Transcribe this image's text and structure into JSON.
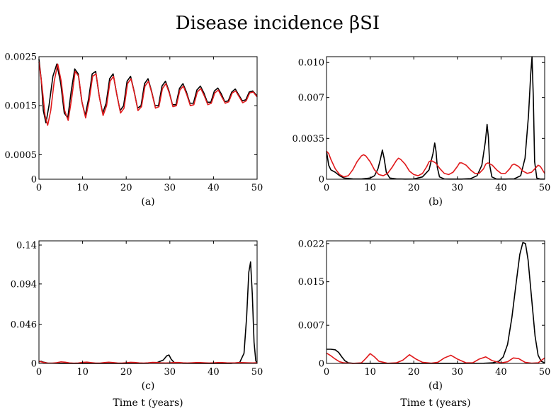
{
  "figure": {
    "title": "Disease incidence βSI",
    "x_label": "Time t (years)"
  },
  "colors": {
    "series_a": "#000000",
    "series_b": "#e0191b"
  },
  "chart_data": [
    {
      "type": "line",
      "caption": "(a)",
      "xlim": [
        0,
        50
      ],
      "ylim": [
        0,
        0.0025
      ],
      "xticks": [
        0,
        10,
        20,
        30,
        40,
        50
      ],
      "xtick_labels": [
        "0",
        "10",
        "20",
        "30",
        "40",
        "50"
      ],
      "yticks": [
        0,
        0.0005,
        0.0015,
        0.0025
      ],
      "ytick_labels": [
        "0",
        "0.0005",
        "0.0015",
        "0.0025"
      ],
      "series": [
        {
          "name": "black",
          "x": [
            0,
            0.5,
            1,
            1.6,
            2.3,
            3.2,
            4.1,
            5.0,
            5.8,
            6.6,
            7.4,
            8.2,
            9.0,
            9.8,
            10.6,
            11.4,
            12.2,
            13.0,
            13.8,
            14.6,
            15.4,
            16.2,
            17.0,
            17.8,
            18.6,
            19.4,
            20.2,
            21.0,
            21.8,
            22.6,
            23.4,
            24.2,
            25.0,
            25.8,
            26.6,
            27.4,
            28.2,
            29.0,
            29.8,
            30.6,
            31.4,
            32.2,
            33.0,
            33.8,
            34.6,
            35.4,
            36.2,
            37.0,
            37.8,
            38.6,
            39.4,
            40.2,
            41.0,
            41.8,
            42.6,
            43.4,
            44.2,
            45.0,
            45.8,
            46.6,
            47.4,
            48.2,
            49.0,
            49.8,
            50
          ],
          "values": [
            0.00245,
            0.00205,
            0.0014,
            0.00115,
            0.0015,
            0.0021,
            0.00235,
            0.00195,
            0.00135,
            0.00125,
            0.0018,
            0.00225,
            0.00215,
            0.0016,
            0.0013,
            0.00165,
            0.00215,
            0.0022,
            0.0017,
            0.00135,
            0.00155,
            0.00205,
            0.00215,
            0.00175,
            0.0014,
            0.0015,
            0.002,
            0.0021,
            0.0018,
            0.00145,
            0.0015,
            0.00195,
            0.00205,
            0.0018,
            0.0015,
            0.0015,
            0.0019,
            0.002,
            0.0018,
            0.00152,
            0.00152,
            0.00185,
            0.00195,
            0.00178,
            0.00155,
            0.00155,
            0.00182,
            0.0019,
            0.00176,
            0.00157,
            0.00157,
            0.0018,
            0.00186,
            0.00174,
            0.00158,
            0.0016,
            0.00178,
            0.00184,
            0.00172,
            0.0016,
            0.00162,
            0.00178,
            0.0018,
            0.00172,
            0.00168
          ]
        },
        {
          "name": "red",
          "x": [
            0,
            0.7,
            1.4,
            2.0,
            2.7,
            3.5,
            4.3,
            5.1,
            5.9,
            6.7,
            7.5,
            8.3,
            9.1,
            9.9,
            10.7,
            11.5,
            12.3,
            13.1,
            13.9,
            14.7,
            15.5,
            16.3,
            17.1,
            17.9,
            18.7,
            19.5,
            20.3,
            21.1,
            21.9,
            22.7,
            23.5,
            24.3,
            25.1,
            25.9,
            26.7,
            27.5,
            28.3,
            29.1,
            29.9,
            30.7,
            31.5,
            32.3,
            33.1,
            33.9,
            34.7,
            35.5,
            36.3,
            37.1,
            37.9,
            38.7,
            39.5,
            40.3,
            41.1,
            41.9,
            42.7,
            43.5,
            44.3,
            45.1,
            45.9,
            46.7,
            47.5,
            48.3,
            49.1,
            50
          ],
          "values": [
            0.0024,
            0.0019,
            0.0013,
            0.0011,
            0.0014,
            0.002,
            0.00235,
            0.002,
            0.0014,
            0.0012,
            0.00165,
            0.0022,
            0.0021,
            0.00155,
            0.00125,
            0.0016,
            0.0021,
            0.00215,
            0.00165,
            0.0013,
            0.0015,
            0.002,
            0.0021,
            0.0017,
            0.00135,
            0.00145,
            0.00195,
            0.00205,
            0.00175,
            0.0014,
            0.00148,
            0.0019,
            0.002,
            0.00175,
            0.00145,
            0.00148,
            0.00185,
            0.00195,
            0.00175,
            0.00148,
            0.0015,
            0.00182,
            0.0019,
            0.00172,
            0.0015,
            0.00152,
            0.00178,
            0.00185,
            0.0017,
            0.00152,
            0.00155,
            0.00176,
            0.00182,
            0.00168,
            0.00155,
            0.00158,
            0.00176,
            0.0018,
            0.00168,
            0.00156,
            0.0016,
            0.00176,
            0.00178,
            0.00168
          ]
        }
      ]
    },
    {
      "type": "line",
      "caption": "(b)",
      "xlim": [
        0,
        50
      ],
      "ylim": [
        0,
        0.0105
      ],
      "xticks": [
        0,
        10,
        20,
        30,
        40,
        50
      ],
      "xtick_labels": [
        "0",
        "10",
        "20",
        "30",
        "40",
        "50"
      ],
      "yticks": [
        0,
        0.0035,
        0.007,
        0.01
      ],
      "ytick_labels": [
        "0",
        "0.0035",
        "0.007",
        "0.010"
      ],
      "series": [
        {
          "name": "black",
          "x": [
            0,
            0.5,
            1,
            2,
            3,
            4,
            6,
            8,
            10,
            11,
            11.8,
            12.4,
            12.8,
            13.2,
            13.7,
            14.5,
            16,
            18,
            20,
            22,
            23.5,
            24.4,
            24.8,
            25.1,
            25.4,
            25.9,
            27,
            29,
            31,
            33,
            34.5,
            35.6,
            36.4,
            36.8,
            37.1,
            37.4,
            37.9,
            39,
            41,
            43,
            44.5,
            45.5,
            46.3,
            46.8,
            47.1,
            47.4,
            47.7,
            48.2,
            49,
            50
          ],
          "values": [
            0.0024,
            0.0012,
            0.0008,
            0.0006,
            0.0003,
            0.0001,
            3e-05,
            2e-05,
            0.0001,
            0.0003,
            0.0009,
            0.0018,
            0.0025,
            0.0018,
            0.0006,
            0.0001,
            3e-05,
            1e-05,
            2e-05,
            0.0002,
            0.0008,
            0.0022,
            0.0031,
            0.0024,
            0.001,
            0.0002,
            2e-05,
            1e-05,
            1e-05,
            5e-05,
            0.0003,
            0.0012,
            0.0032,
            0.0047,
            0.0036,
            0.0012,
            0.0002,
            1e-05,
            1e-05,
            3e-05,
            0.0003,
            0.0018,
            0.0055,
            0.009,
            0.0105,
            0.007,
            0.0015,
            0.0001,
            1e-05,
            1e-05
          ]
        },
        {
          "name": "red",
          "x": [
            0,
            0.5,
            1,
            2,
            3,
            4,
            5,
            6,
            7,
            8,
            8.5,
            9,
            10,
            11,
            12,
            13,
            14,
            15,
            16,
            16.5,
            17,
            18,
            19,
            20,
            21,
            22,
            23,
            23.5,
            24,
            25,
            26,
            27,
            28,
            29,
            30,
            30.5,
            31,
            32,
            33,
            34,
            35,
            36,
            36.5,
            37,
            38,
            39,
            40,
            41,
            42,
            42.5,
            43,
            44,
            45,
            46,
            47,
            48,
            48.5,
            49,
            50
          ],
          "values": [
            0.0024,
            0.0022,
            0.0017,
            0.0009,
            0.0004,
            0.0002,
            0.0003,
            0.0008,
            0.0015,
            0.002,
            0.0021,
            0.002,
            0.0015,
            0.0008,
            0.0004,
            0.0003,
            0.0005,
            0.001,
            0.0016,
            0.0018,
            0.0017,
            0.0013,
            0.0007,
            0.0004,
            0.0003,
            0.0005,
            0.0011,
            0.0015,
            0.0016,
            0.0014,
            0.0009,
            0.0005,
            0.0004,
            0.0006,
            0.0011,
            0.0014,
            0.0014,
            0.0012,
            0.0008,
            0.0005,
            0.0005,
            0.0009,
            0.0013,
            0.0014,
            0.0012,
            0.0008,
            0.0005,
            0.0005,
            0.0009,
            0.0012,
            0.0013,
            0.0011,
            0.0007,
            0.0005,
            0.0006,
            0.001,
            0.0012,
            0.0011,
            0.0005
          ]
        }
      ]
    },
    {
      "type": "line",
      "caption": "(c)",
      "xlim": [
        0,
        50
      ],
      "ylim": [
        0,
        0.145
      ],
      "xticks": [
        0,
        10,
        20,
        30,
        40,
        50
      ],
      "xtick_labels": [
        "0",
        "10",
        "20",
        "30",
        "40",
        "50"
      ],
      "yticks": [
        0,
        0.046,
        0.094,
        0.14
      ],
      "ytick_labels": [
        "0",
        "0.046",
        "0.094",
        "0.14"
      ],
      "series": [
        {
          "name": "black",
          "x": [
            0,
            0.5,
            1,
            2,
            5,
            10,
            15,
            20,
            25,
            27,
            28.5,
            29.3,
            29.8,
            30.3,
            31,
            33,
            38,
            44,
            46,
            47,
            47.6,
            48.1,
            48.5,
            48.9,
            49.3,
            49.7,
            50
          ],
          "values": [
            0.002,
            0.0025,
            0.0015,
            0.0004,
            5e-05,
            2e-05,
            1e-05,
            1e-05,
            0.0001,
            0.0008,
            0.004,
            0.009,
            0.01,
            0.005,
            0.001,
            0.0001,
            1e-05,
            5e-05,
            0.001,
            0.012,
            0.055,
            0.108,
            0.12,
            0.082,
            0.025,
            0.003,
            0.0002
          ]
        },
        {
          "name": "red",
          "x": [
            0,
            1,
            2,
            3,
            4,
            5,
            6,
            7,
            8,
            9,
            10,
            11,
            12,
            13,
            14,
            15,
            16,
            17,
            18,
            19,
            20,
            21,
            22,
            23,
            24,
            25,
            26,
            27,
            28,
            29,
            30,
            31,
            32,
            33,
            34,
            35,
            36,
            37,
            38,
            39,
            40,
            41,
            42,
            43,
            44,
            45,
            46,
            47,
            48,
            49,
            50
          ],
          "values": [
            0.0025,
            0.0012,
            0.0004,
            0.0003,
            0.0008,
            0.0018,
            0.0014,
            0.0006,
            0.0003,
            0.0005,
            0.0012,
            0.0015,
            0.0009,
            0.0004,
            0.0004,
            0.001,
            0.0014,
            0.001,
            0.0005,
            0.0004,
            0.0008,
            0.0013,
            0.0011,
            0.0006,
            0.0004,
            0.0007,
            0.0012,
            0.0011,
            0.0007,
            0.0005,
            0.0007,
            0.0011,
            0.0011,
            0.0007,
            0.0005,
            0.0007,
            0.001,
            0.001,
            0.0007,
            0.0005,
            0.0007,
            0.001,
            0.001,
            0.0007,
            0.0006,
            0.0007,
            0.001,
            0.0009,
            0.0007,
            0.0006,
            0.0008
          ]
        }
      ]
    },
    {
      "type": "line",
      "caption": "(d)",
      "xlim": [
        0,
        50
      ],
      "ylim": [
        0,
        0.0225
      ],
      "xticks": [
        0,
        10,
        20,
        30,
        40,
        50
      ],
      "xtick_labels": [
        "0",
        "10",
        "20",
        "30",
        "40",
        "50"
      ],
      "yticks": [
        0,
        0.007,
        0.015,
        0.022
      ],
      "ytick_labels": [
        "0",
        "0.007",
        "0.015",
        "0.022"
      ],
      "series": [
        {
          "name": "black",
          "x": [
            0,
            1,
            2,
            2.8,
            3.5,
            4.2,
            5,
            6,
            8,
            12,
            20,
            30,
            36,
            38,
            39.5,
            40.5,
            41.5,
            42.5,
            43.5,
            44.3,
            45,
            45.6,
            46.2,
            47,
            47.8,
            48.5,
            49.2,
            50
          ],
          "values": [
            0.0026,
            0.0026,
            0.0025,
            0.002,
            0.0012,
            0.0005,
            0.0001,
            2e-05,
            1e-05,
            1e-05,
            1e-05,
            1e-05,
            3e-05,
            0.0001,
            0.0004,
            0.0012,
            0.0035,
            0.0085,
            0.015,
            0.02,
            0.0222,
            0.022,
            0.019,
            0.012,
            0.005,
            0.0015,
            0.0004,
            0.0001
          ]
        },
        {
          "name": "red",
          "x": [
            0,
            1,
            2,
            3,
            4,
            6,
            8,
            9,
            10,
            11,
            12,
            14,
            16,
            17.5,
            19,
            20.5,
            22,
            24,
            25.5,
            27,
            28.5,
            30,
            32,
            33.5,
            35,
            36.5,
            38,
            40,
            41.5,
            42.8,
            44,
            45.5,
            47,
            48.5,
            49.3,
            50
          ],
          "values": [
            0.0019,
            0.0014,
            0.0008,
            0.0003,
            0.0001,
            1e-05,
            0.0001,
            0.0009,
            0.0018,
            0.0012,
            0.0004,
            3e-05,
            0.0001,
            0.0006,
            0.0016,
            0.0008,
            0.0002,
            5e-05,
            0.0002,
            0.001,
            0.0015,
            0.0008,
            0.0001,
            0.0001,
            0.0008,
            0.0012,
            0.0005,
            0.0001,
            0.0003,
            0.001,
            0.0009,
            0.0002,
            5e-05,
            0.0001,
            0.0006,
            0.001
          ]
        }
      ]
    }
  ]
}
